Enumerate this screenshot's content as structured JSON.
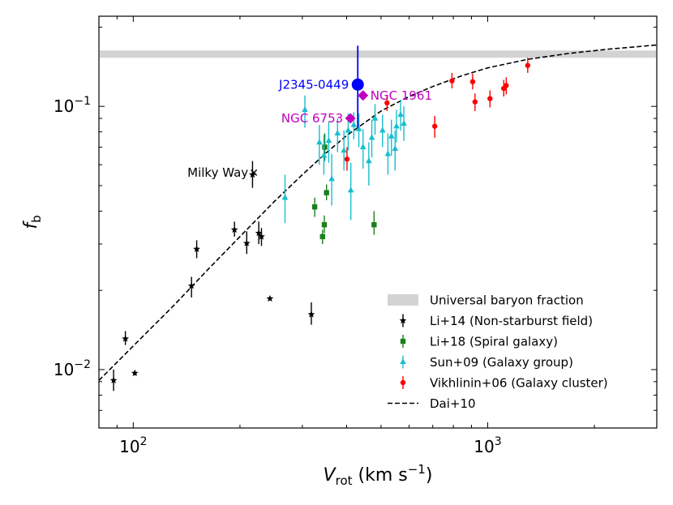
{
  "chart_data": {
    "type": "scatter",
    "xscale": "log",
    "yscale": "log",
    "xlim": [
      80,
      3000
    ],
    "ylim": [
      0.006,
      0.22
    ],
    "xlabel_main": "V",
    "xlabel_sub": "rot",
    "xlabel_units": " (km s",
    "xlabel_sup": "−1",
    "xlabel_close": ")",
    "ylabel_main": "f",
    "ylabel_sub": "b",
    "x_ticks": [
      {
        "value": 100,
        "base": "10",
        "exp": "2"
      },
      {
        "value": 1000,
        "base": "10",
        "exp": "3"
      }
    ],
    "y_ticks": [
      {
        "value": 0.01,
        "base": "10",
        "exp": "−2"
      },
      {
        "value": 0.1,
        "base": "10",
        "exp": "−1"
      }
    ],
    "universal_band": {
      "low": 0.153,
      "high": 0.163,
      "color": "#d3d3d3"
    },
    "model_curve": {
      "name": "Dai+10",
      "color": "#000000",
      "points": [
        [
          80,
          0.0091
        ],
        [
          100,
          0.0123
        ],
        [
          130,
          0.0175
        ],
        [
          160,
          0.0235
        ],
        [
          200,
          0.032
        ],
        [
          250,
          0.0435
        ],
        [
          300,
          0.055
        ],
        [
          350,
          0.0665
        ],
        [
          400,
          0.0775
        ],
        [
          500,
          0.096
        ],
        [
          600,
          0.109
        ],
        [
          700,
          0.119
        ],
        [
          850,
          0.131
        ],
        [
          1000,
          0.14
        ],
        [
          1300,
          0.151
        ],
        [
          1700,
          0.159
        ],
        [
          2200,
          0.165
        ],
        [
          3000,
          0.171
        ]
      ]
    },
    "series": [
      {
        "name": "Li+14 (Non-starburst field)",
        "color": "#000000",
        "marker": "star",
        "points": [
          {
            "x": 88,
            "y": 0.0091,
            "ylo": 0.0083,
            "yhi": 0.01
          },
          {
            "x": 95,
            "y": 0.0131,
            "ylo": 0.0124,
            "yhi": 0.014
          },
          {
            "x": 101,
            "y": 0.0097,
            "ylo": 0.0095,
            "yhi": 0.0099
          },
          {
            "x": 146,
            "y": 0.0208,
            "ylo": 0.0188,
            "yhi": 0.0225
          },
          {
            "x": 151,
            "y": 0.0287,
            "ylo": 0.0265,
            "yhi": 0.031
          },
          {
            "x": 193,
            "y": 0.034,
            "ylo": 0.032,
            "yhi": 0.0365
          },
          {
            "x": 209,
            "y": 0.0302,
            "ylo": 0.0275,
            "yhi": 0.0335
          },
          {
            "x": 217,
            "y": 0.055,
            "ylo": 0.049,
            "yhi": 0.062
          },
          {
            "x": 226,
            "y": 0.033,
            "ylo": 0.03,
            "yhi": 0.0365
          },
          {
            "x": 230,
            "y": 0.032,
            "ylo": 0.0295,
            "yhi": 0.0345
          },
          {
            "x": 243,
            "y": 0.0186,
            "ylo": 0.0183,
            "yhi": 0.0189
          },
          {
            "x": 318,
            "y": 0.0162,
            "ylo": 0.0148,
            "yhi": 0.018
          }
        ]
      },
      {
        "name": "Li+18 (Spiral galaxy)",
        "color": "#1a801a",
        "marker": "square",
        "points": [
          {
            "x": 325,
            "y": 0.0415,
            "ylo": 0.038,
            "yhi": 0.045
          },
          {
            "x": 342,
            "y": 0.032,
            "ylo": 0.03,
            "yhi": 0.034
          },
          {
            "x": 346,
            "y": 0.0355,
            "ylo": 0.033,
            "yhi": 0.0385
          },
          {
            "x": 347,
            "y": 0.07,
            "ylo": 0.062,
            "yhi": 0.079
          },
          {
            "x": 351,
            "y": 0.047,
            "ylo": 0.044,
            "yhi": 0.0505
          },
          {
            "x": 478,
            "y": 0.0355,
            "ylo": 0.0325,
            "yhi": 0.04
          }
        ]
      },
      {
        "name": "Sun+09 (Galaxy group)",
        "color": "#17becf",
        "marker": "triangle",
        "points": [
          {
            "x": 268,
            "y": 0.045,
            "ylo": 0.036,
            "yhi": 0.055
          },
          {
            "x": 305,
            "y": 0.097,
            "ylo": 0.083,
            "yhi": 0.11
          },
          {
            "x": 335,
            "y": 0.073,
            "ylo": 0.06,
            "yhi": 0.085
          },
          {
            "x": 345,
            "y": 0.065,
            "ylo": 0.055,
            "yhi": 0.078
          },
          {
            "x": 356,
            "y": 0.074,
            "ylo": 0.061,
            "yhi": 0.087
          },
          {
            "x": 363,
            "y": 0.053,
            "ylo": 0.042,
            "yhi": 0.066
          },
          {
            "x": 377,
            "y": 0.079,
            "ylo": 0.067,
            "yhi": 0.09
          },
          {
            "x": 393,
            "y": 0.068,
            "ylo": 0.057,
            "yhi": 0.081
          },
          {
            "x": 404,
            "y": 0.081,
            "ylo": 0.068,
            "yhi": 0.094
          },
          {
            "x": 411,
            "y": 0.048,
            "ylo": 0.037,
            "yhi": 0.061
          },
          {
            "x": 419,
            "y": 0.085,
            "ylo": 0.075,
            "yhi": 0.095
          },
          {
            "x": 433,
            "y": 0.082,
            "ylo": 0.07,
            "yhi": 0.094
          },
          {
            "x": 445,
            "y": 0.07,
            "ylo": 0.058,
            "yhi": 0.082
          },
          {
            "x": 462,
            "y": 0.062,
            "ylo": 0.05,
            "yhi": 0.073
          },
          {
            "x": 471,
            "y": 0.076,
            "ylo": 0.064,
            "yhi": 0.089
          },
          {
            "x": 481,
            "y": 0.09,
            "ylo": 0.078,
            "yhi": 0.102
          },
          {
            "x": 505,
            "y": 0.081,
            "ylo": 0.07,
            "yhi": 0.093
          },
          {
            "x": 523,
            "y": 0.066,
            "ylo": 0.055,
            "yhi": 0.079
          },
          {
            "x": 535,
            "y": 0.077,
            "ylo": 0.065,
            "yhi": 0.089
          },
          {
            "x": 548,
            "y": 0.069,
            "ylo": 0.057,
            "yhi": 0.081
          },
          {
            "x": 553,
            "y": 0.084,
            "ylo": 0.073,
            "yhi": 0.097
          },
          {
            "x": 568,
            "y": 0.093,
            "ylo": 0.081,
            "yhi": 0.106
          },
          {
            "x": 580,
            "y": 0.086,
            "ylo": 0.074,
            "yhi": 0.1
          }
        ]
      },
      {
        "name": "Vikhlinin+06 (Galaxy cluster)",
        "color": "#ff0000",
        "marker": "circle",
        "points": [
          {
            "x": 401,
            "y": 0.063,
            "ylo": 0.057,
            "yhi": 0.07
          },
          {
            "x": 520,
            "y": 0.103,
            "ylo": 0.096,
            "yhi": 0.11
          },
          {
            "x": 709,
            "y": 0.084,
            "ylo": 0.076,
            "yhi": 0.092
          },
          {
            "x": 793,
            "y": 0.125,
            "ylo": 0.117,
            "yhi": 0.134
          },
          {
            "x": 907,
            "y": 0.124,
            "ylo": 0.116,
            "yhi": 0.133
          },
          {
            "x": 921,
            "y": 0.104,
            "ylo": 0.096,
            "yhi": 0.112
          },
          {
            "x": 1015,
            "y": 0.107,
            "ylo": 0.099,
            "yhi": 0.115
          },
          {
            "x": 1110,
            "y": 0.117,
            "ylo": 0.109,
            "yhi": 0.126
          },
          {
            "x": 1128,
            "y": 0.12,
            "ylo": 0.111,
            "yhi": 0.129
          },
          {
            "x": 1297,
            "y": 0.143,
            "ylo": 0.134,
            "yhi": 0.153
          }
        ]
      }
    ],
    "highlights": [
      {
        "name": "J2345-0449",
        "x": 430,
        "y": 0.121,
        "ylo": 0.083,
        "yhi": 0.17,
        "color": "#0000ff",
        "marker": "big-circle",
        "label_side": "left"
      },
      {
        "name": "NGC 1961",
        "x": 445,
        "y": 0.11,
        "color": "#bf00bf",
        "marker": "diamond",
        "label_side": "right"
      },
      {
        "name": "NGC 6753",
        "x": 410,
        "y": 0.09,
        "color": "#bf00bf",
        "marker": "diamond",
        "label_side": "left"
      },
      {
        "name": "Milky Way",
        "x": 219,
        "y": 0.056,
        "color": "#000000",
        "marker": "x",
        "label_side": "left"
      }
    ],
    "legend": {
      "placement": "lower-right",
      "entries": [
        {
          "label": "Universal baryon fraction",
          "kind": "band",
          "color": "#d3d3d3"
        },
        {
          "label": "Li+14 (Non-starburst field)",
          "kind": "star",
          "color": "#000000"
        },
        {
          "label": "Li+18 (Spiral galaxy)",
          "kind": "square",
          "color": "#1a801a"
        },
        {
          "label": "Sun+09 (Galaxy group)",
          "kind": "triangle",
          "color": "#17becf"
        },
        {
          "label": "Vikhlinin+06 (Galaxy cluster)",
          "kind": "circle",
          "color": "#ff0000"
        },
        {
          "label": "Dai+10",
          "kind": "dashed",
          "color": "#000000"
        }
      ]
    }
  }
}
